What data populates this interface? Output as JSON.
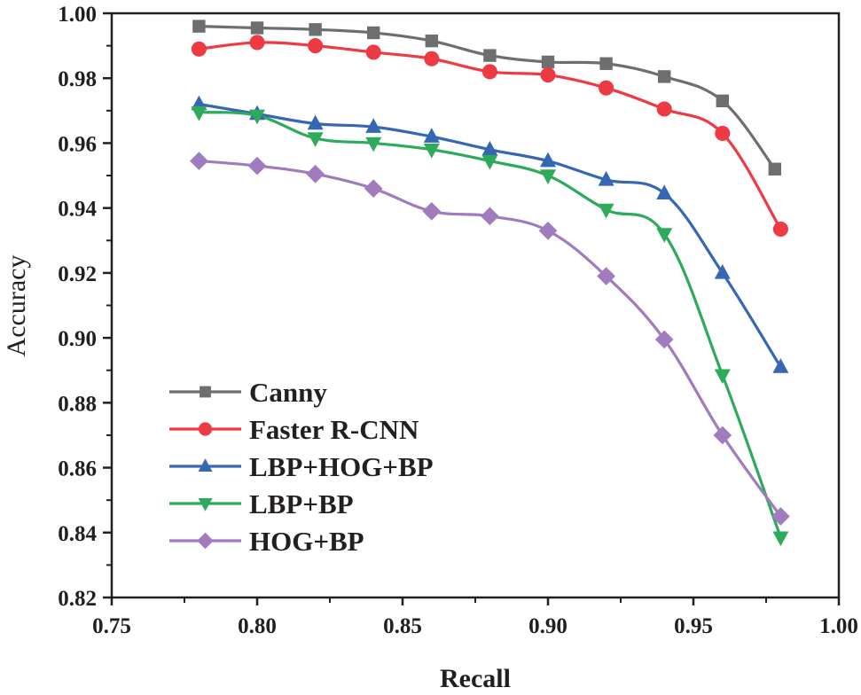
{
  "chart_data": {
    "type": "line",
    "title": "",
    "xlabel": "Recall",
    "ylabel": "Accuracy",
    "xlim": [
      0.75,
      1.0
    ],
    "ylim": [
      0.82,
      1.0
    ],
    "xticks": [
      "0.75",
      "0.80",
      "0.85",
      "0.90",
      "0.95",
      "1.00"
    ],
    "yticks": [
      "0.82",
      "0.84",
      "0.86",
      "0.88",
      "0.90",
      "0.92",
      "0.94",
      "0.96",
      "0.98",
      "1.00"
    ],
    "grid": false,
    "legend_position": "bottom-left",
    "series": [
      {
        "name": "Canny",
        "color": "#6d6e70",
        "marker": "square",
        "x": [
          0.78,
          0.8,
          0.82,
          0.84,
          0.86,
          0.88,
          0.9,
          0.92,
          0.94,
          0.96,
          0.978
        ],
        "y": [
          0.996,
          0.9955,
          0.995,
          0.994,
          0.9915,
          0.987,
          0.985,
          0.9845,
          0.9805,
          0.973,
          0.952
        ]
      },
      {
        "name": "Faster R-CNN",
        "color": "#ee3a43",
        "marker": "circle",
        "x": [
          0.78,
          0.8,
          0.82,
          0.84,
          0.86,
          0.88,
          0.9,
          0.92,
          0.94,
          0.96,
          0.98
        ],
        "y": [
          0.989,
          0.991,
          0.99,
          0.988,
          0.986,
          0.982,
          0.981,
          0.977,
          0.9705,
          0.963,
          0.9335
        ]
      },
      {
        "name": "LBP+HOG+BP",
        "color": "#3567b5",
        "marker": "triangle-up",
        "x": [
          0.78,
          0.8,
          0.82,
          0.84,
          0.86,
          0.88,
          0.9,
          0.92,
          0.94,
          0.96,
          0.98
        ],
        "y": [
          0.972,
          0.969,
          0.966,
          0.965,
          0.962,
          0.958,
          0.9545,
          0.9487,
          0.9445,
          0.92,
          0.891
        ]
      },
      {
        "name": "LBP+BP",
        "color": "#2eaa5b",
        "marker": "triangle-down",
        "x": [
          0.78,
          0.8,
          0.82,
          0.84,
          0.86,
          0.88,
          0.9,
          0.92,
          0.94,
          0.96,
          0.98
        ],
        "y": [
          0.9695,
          0.9685,
          0.9615,
          0.96,
          0.958,
          0.9545,
          0.95,
          0.9395,
          0.932,
          0.8885,
          0.8385
        ]
      },
      {
        "name": "HOG+BP",
        "color": "#a07bbd",
        "marker": "diamond",
        "x": [
          0.78,
          0.8,
          0.82,
          0.84,
          0.86,
          0.88,
          0.9,
          0.92,
          0.94,
          0.96,
          0.98
        ],
        "y": [
          0.9545,
          0.953,
          0.9505,
          0.946,
          0.939,
          0.9375,
          0.933,
          0.919,
          0.8995,
          0.87,
          0.845
        ]
      }
    ]
  }
}
